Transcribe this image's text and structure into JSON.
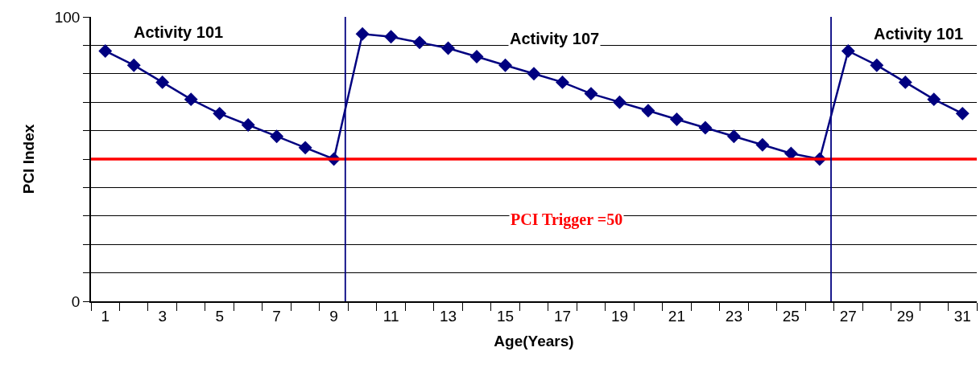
{
  "chart_data": {
    "type": "line",
    "xlabel": "Age(Years)",
    "ylabel": "PCI Index",
    "x": [
      1,
      2,
      3,
      4,
      5,
      6,
      7,
      8,
      9,
      10,
      11,
      12,
      13,
      14,
      15,
      16,
      17,
      18,
      19,
      20,
      21,
      22,
      23,
      24,
      25,
      26,
      27,
      28,
      29,
      30,
      31
    ],
    "series": [
      {
        "color": "#000080",
        "values": [
          88,
          83,
          77,
          71,
          66,
          62,
          58,
          54,
          50,
          94,
          93,
          91,
          89,
          86,
          83,
          80,
          77,
          73,
          70,
          67,
          64,
          61,
          58,
          55,
          52,
          50,
          88,
          83,
          77,
          71,
          66
        ]
      }
    ],
    "marker": "diamond",
    "line_style": "solid",
    "grid": "y",
    "xlim": [
      0.5,
      31.5
    ],
    "xticks": [
      1,
      3,
      5,
      7,
      9,
      11,
      13,
      15,
      17,
      19,
      21,
      23,
      25,
      27,
      29,
      31
    ],
    "ylim": [
      0,
      100
    ],
    "yticks": [
      0,
      {
        "value": 10,
        "label": null
      },
      {
        "value": 20,
        "label": null
      },
      {
        "value": 30,
        "label": null
      },
      {
        "value": 40,
        "label": null
      },
      {
        "value": 50,
        "label": null
      },
      {
        "value": 60,
        "label": null
      },
      {
        "value": 70,
        "label": null
      },
      {
        "value": 80,
        "label": null
      },
      {
        "value": 90,
        "label": null
      },
      100
    ],
    "ref_lines": [
      {
        "axis": "y",
        "value": 50,
        "color": "#ff0000"
      },
      {
        "axis": "x",
        "value": 9.4,
        "color": "#000080"
      },
      {
        "axis": "x",
        "value": 26.4,
        "color": "#000080"
      }
    ],
    "annotations": [
      "Activity 101",
      "Activity 107",
      "Activity 101",
      "PCI Trigger =50"
    ]
  }
}
